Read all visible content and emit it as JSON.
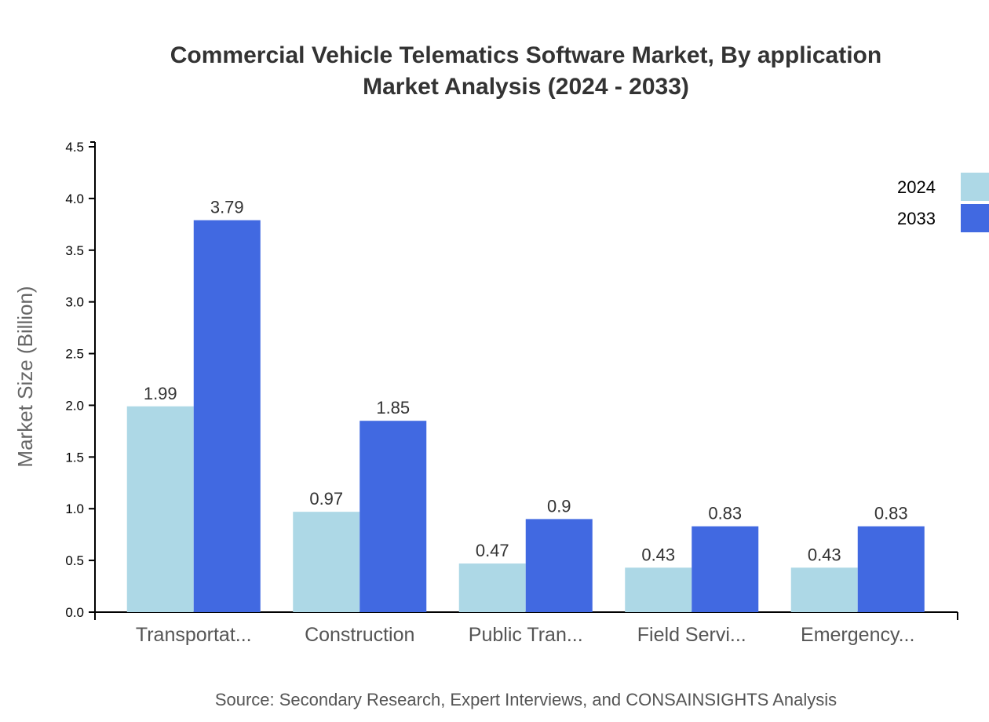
{
  "chart_data": {
    "type": "bar",
    "title": "Commercial Vehicle Telematics Software Market, By application",
    "subtitle": "Market Analysis (2024 - 2033)",
    "xlabel": "",
    "ylabel": "Market Size (Billion)",
    "ylim": [
      0,
      4.5
    ],
    "yticks": [
      "0.0",
      "0.5",
      "1.0",
      "1.5",
      "2.0",
      "2.5",
      "3.0",
      "3.5",
      "4.0",
      "4.5"
    ],
    "categories": [
      "Transportat...",
      "Construction",
      "Public Tran...",
      "Field Servi...",
      "Emergency..."
    ],
    "series": [
      {
        "name": "2024",
        "color": "#add8e6",
        "values": [
          1.99,
          0.97,
          0.47,
          0.43,
          0.43
        ],
        "labels": [
          "1.99",
          "0.97",
          "0.47",
          "0.43",
          "0.43"
        ]
      },
      {
        "name": "2033",
        "color": "#4169e1",
        "values": [
          3.79,
          1.85,
          0.9,
          0.83,
          0.83
        ],
        "labels": [
          "3.79",
          "1.85",
          "0.9",
          "0.83",
          "0.83"
        ]
      }
    ],
    "grid": false,
    "legend": "top-right",
    "source": "Source: Secondary Research, Expert Interviews, and CONSAINSIGHTS Analysis"
  }
}
